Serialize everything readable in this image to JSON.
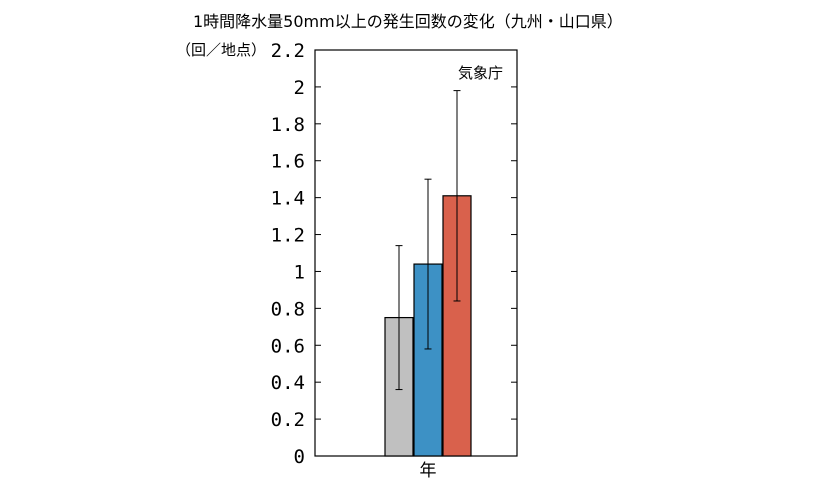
{
  "chart_data": {
    "type": "bar",
    "title": "1時間降水量50mm以上の発生回数の変化（九州・山口県）",
    "unit_label": "（回／地点）",
    "source_label": "気象庁",
    "categories": [
      "年"
    ],
    "ylim": [
      0,
      2.2
    ],
    "ytick_values": [
      0,
      0.2,
      0.4,
      0.6,
      0.8,
      1,
      1.2,
      1.4,
      1.6,
      1.8,
      2,
      2.2
    ],
    "ytick_labels": [
      "0",
      "0.2",
      "0.4",
      "0.6",
      "0.8",
      "1",
      "1.2",
      "1.4",
      "1.6",
      "1.8",
      "2",
      "2.2"
    ],
    "grid": false,
    "series": [
      {
        "values": [
          0.75
        ],
        "error_low": [
          0.36
        ],
        "error_high": [
          1.14
        ],
        "color": "#c0c0c0"
      },
      {
        "values": [
          1.04
        ],
        "error_low": [
          0.58
        ],
        "error_high": [
          1.5
        ],
        "color": "#3d91c5"
      },
      {
        "values": [
          1.41
        ],
        "error_low": [
          0.84
        ],
        "error_high": [
          1.98
        ],
        "color": "#d9614c"
      }
    ]
  }
}
